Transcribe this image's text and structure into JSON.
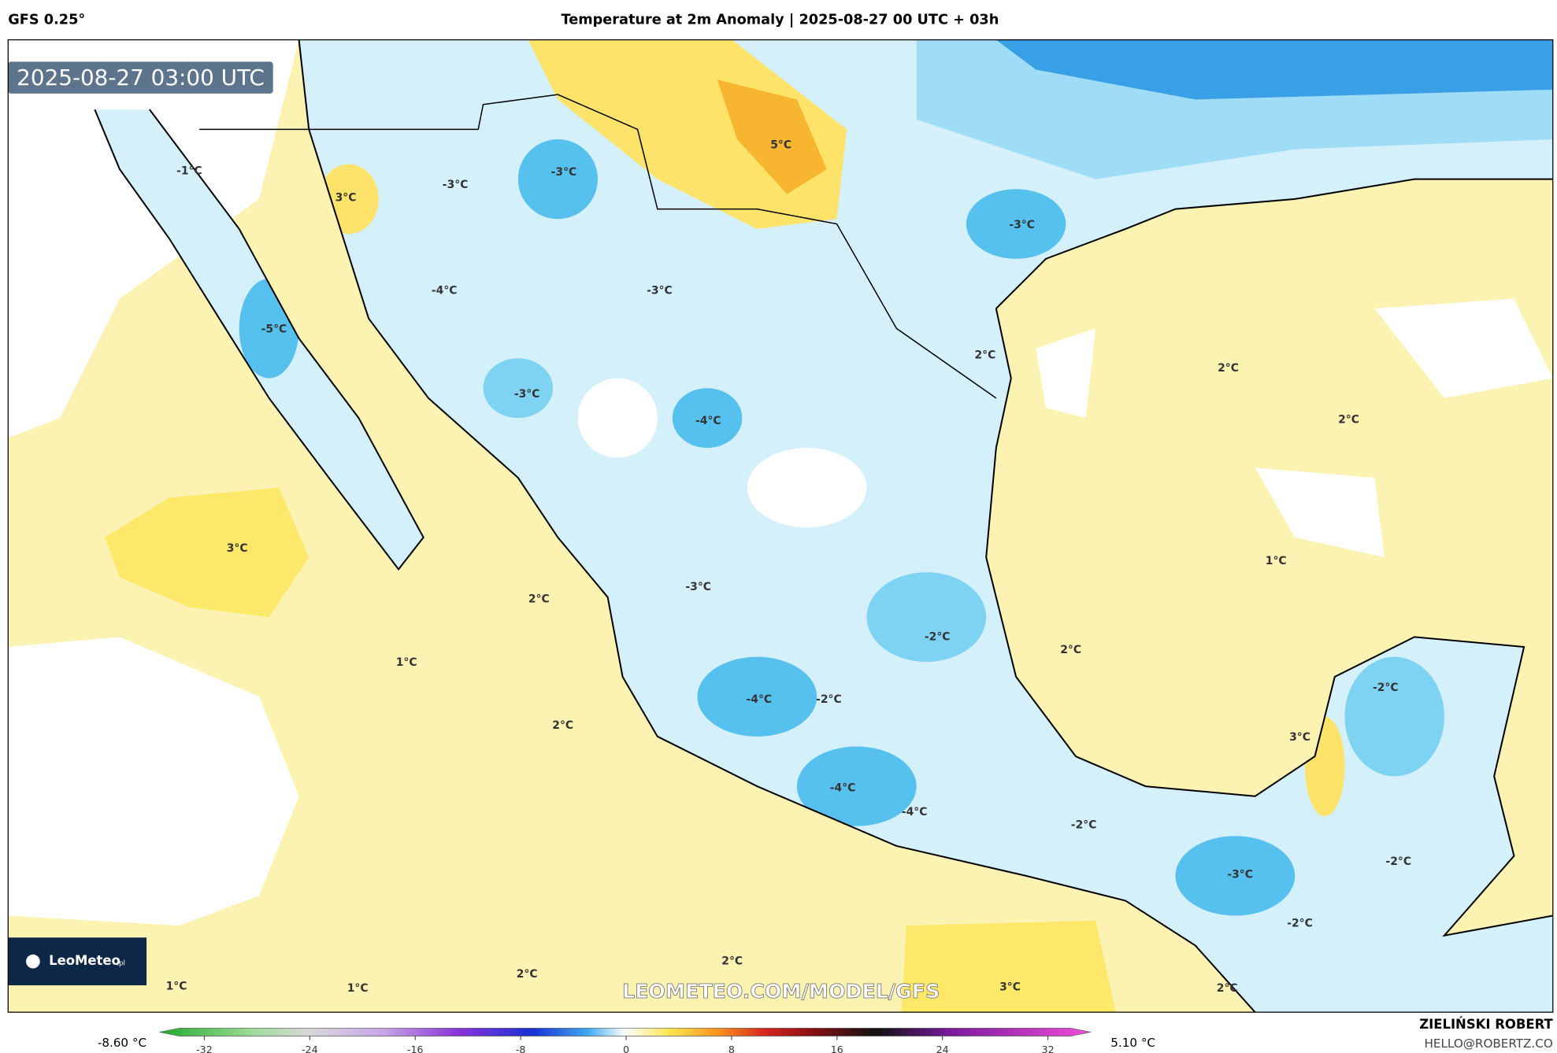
{
  "header": {
    "model": "GFS 0.25°",
    "title": "Temperature at 2m Anomaly | 2025-08-27 00 UTC + 03h"
  },
  "map": {
    "timestamp": "2025-08-27 03:00 UTC",
    "contour_labels": [
      "-1°C",
      "3°C",
      "-3°C",
      "-3°C",
      "5°C",
      "-3°C",
      "-4°C",
      "-3°C",
      "-5°C",
      "2°C",
      "2°C",
      "-3°C",
      "-4°C",
      "2°C",
      "3°C",
      "1°C",
      "2°C",
      "-3°C",
      "-2°C",
      "2°C",
      "1°C",
      "-2°C",
      "-4°C",
      "-2°C",
      "2°C",
      "3°C",
      "-4°C",
      "-4°C",
      "-2°C",
      "-2°C",
      "-3°C",
      "-2°C",
      "2°C",
      "2°C",
      "1°C",
      "1°C",
      "3°C",
      "2°C"
    ],
    "watermark": "LEOMETEO.COM/MODEL/GFS"
  },
  "logo": {
    "name": "LeoMeteo",
    "suffix": ".pl"
  },
  "colorbar": {
    "min_label": "-8.60 °C",
    "max_label": "5.10 °C",
    "lim": [
      -32,
      32
    ],
    "ticks": [
      -32,
      -24,
      -16,
      -8,
      0,
      8,
      16,
      24,
      32
    ]
  },
  "credit": {
    "author": "ZIELIŃSKI ROBERT",
    "email": "HELLO@ROBERTZ.CO"
  }
}
